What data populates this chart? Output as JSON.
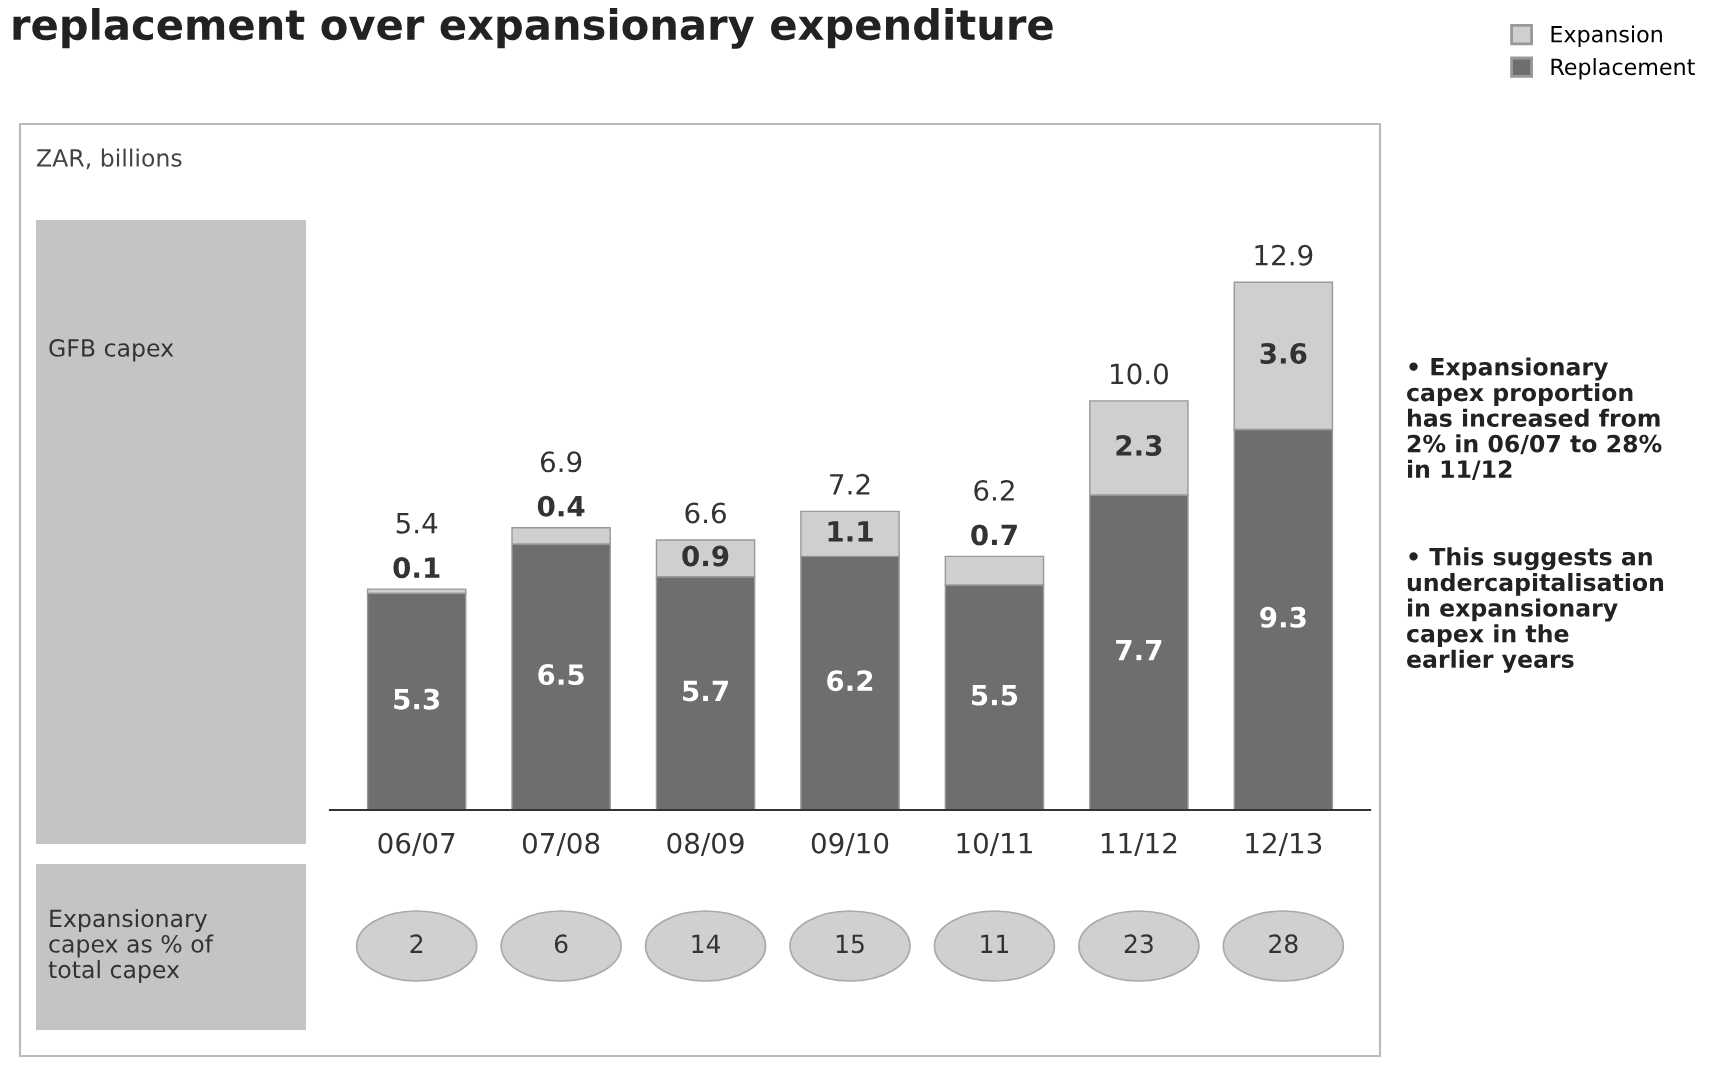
{
  "chart_data": {
    "type": "bar",
    "title": "replacement over expansionary expenditure",
    "categories": [
      "06/07",
      "07/08",
      "08/09",
      "09/10",
      "10/11",
      "11/12",
      "12/13"
    ],
    "stacked": true,
    "data_labels": true,
    "legend": "top right",
    "series": [
      {
        "name": "Replacement",
        "color": "#6e6e6e",
        "values": [
          5.3,
          6.5,
          5.7,
          6.2,
          5.5,
          7.7,
          9.3
        ]
      },
      {
        "name": "Expansion",
        "color": "#cfcfcf",
        "values": [
          0.1,
          0.4,
          0.9,
          1.1,
          0.7,
          2.3,
          3.6
        ]
      }
    ],
    "totals": [
      "5.4",
      "6.9",
      "6.6",
      "7.2",
      "6.2",
      "10.0",
      "12.9"
    ],
    "annotations": [
      "ZAR, billions",
      "GFB capex",
      "Expansionary capex as % of total capex",
      "• Expansionary capex proportion has increased from 2% in 06/07 to 28% in 11/12",
      "• This suggests an undercapitalisation in expansionary capex in the earlier years",
      "2",
      "6",
      "14",
      "15",
      "11",
      "23",
      "28"
    ]
  }
}
